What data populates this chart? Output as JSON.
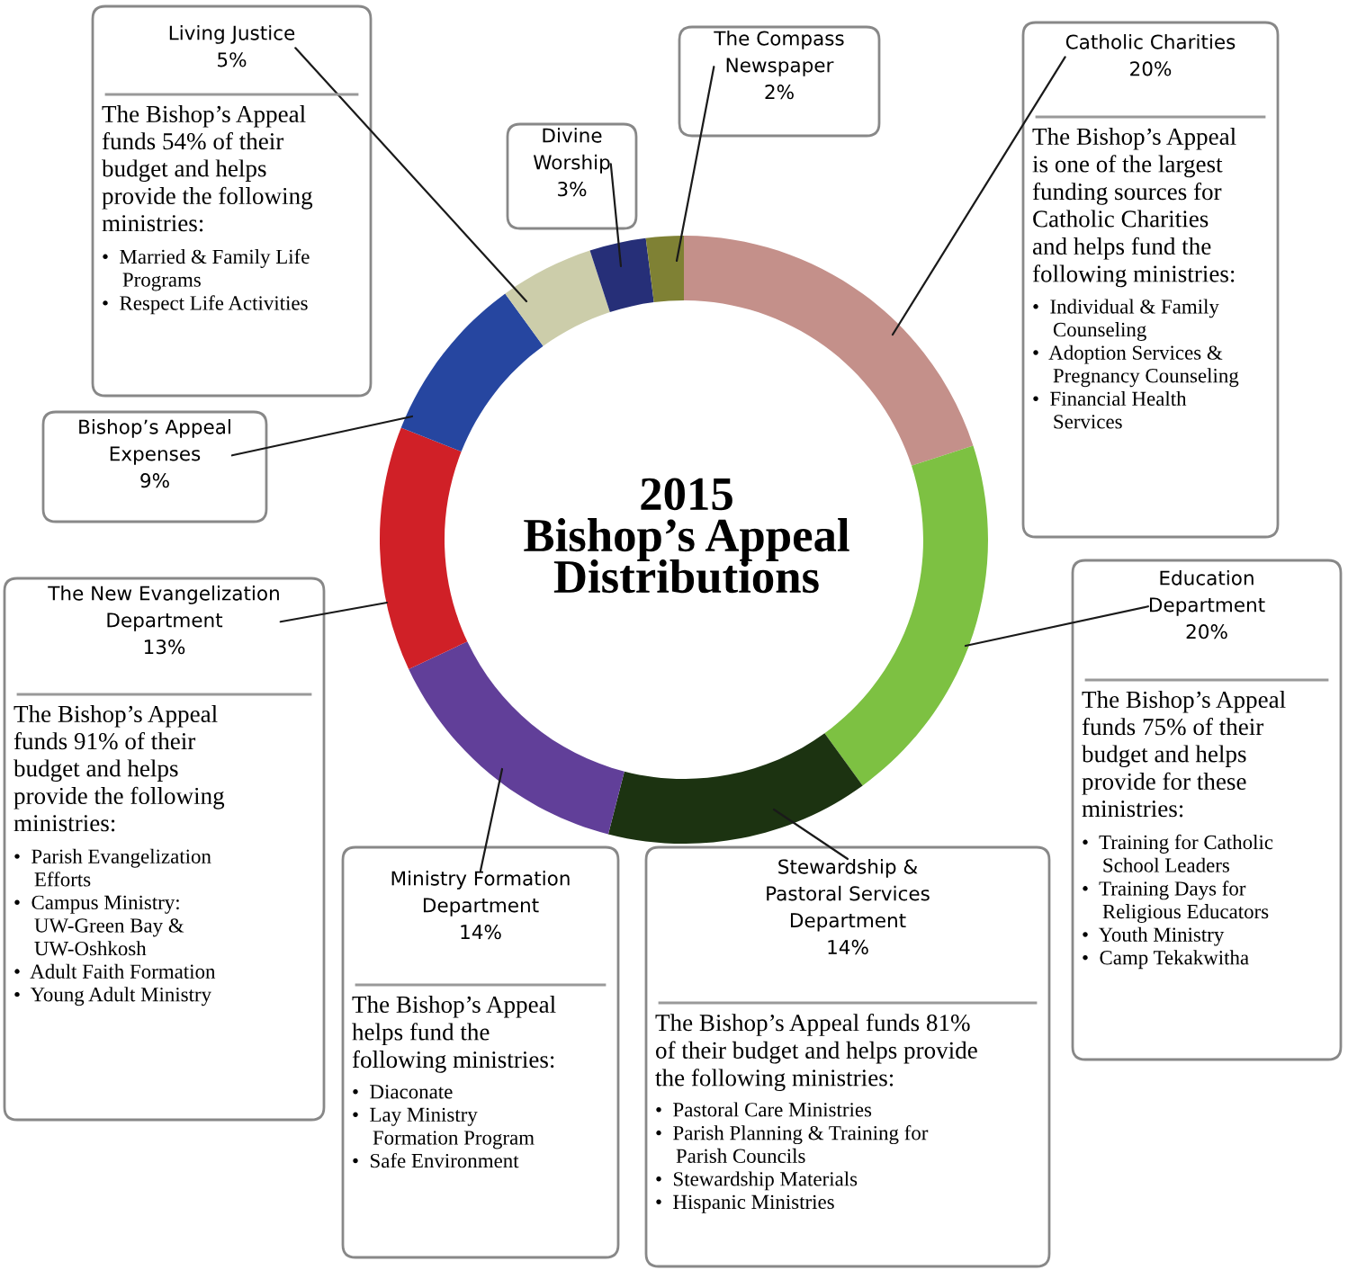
{
  "chart_data": {
    "type": "donut",
    "title": "2015\nBishop’s Appeal\nDistributions",
    "categories": [
      "Catholic Charities",
      "Education\nDepartment",
      "Stewardship &\nPastoral Services\nDepartment",
      "Ministry Formation\nDepartment",
      "The New Evangelization\nDepartment",
      "Bishop’s Appeal\nExpenses",
      "Living Justice",
      "Divine\nWorship",
      "The Compass\nNewspaper"
    ],
    "values": [
      20,
      20,
      14,
      14,
      13,
      9,
      5,
      3,
      2
    ],
    "value_labels": [
      "20%",
      "20%",
      "14%",
      "14%",
      "13%",
      "9%",
      "5%",
      "3%",
      "2%"
    ],
    "colors": [
      "#c4908a",
      "#7dc142",
      "#1c3311",
      "#613f99",
      "#d02027",
      "#2646a0",
      "#cccdaa",
      "#262f78",
      "#7f8134"
    ],
    "annotations": [
      "The Bishop’s Appeal\nis one of the largest\nfunding sources for\nCatholic Charities\nand helps fund the\nfollowing ministries:",
      "•  Individual & Family\n    Counseling\n•  Adoption Services &\n    Pregnancy Counseling\n•  Financial Health\n    Services",
      "The Bishop’s Appeal\nfunds 75% of their\nbudget and helps\nprovide for these\nministries:",
      "•  Training for Catholic\n    School Leaders\n•  Training Days for\n    Religious Educators\n•  Youth Ministry\n•  Camp Tekakwitha",
      "The Bishop’s Appeal funds 81%\nof their budget and helps provide\nthe following ministries:",
      "•  Pastoral Care Ministries\n•  Parish Planning & Training for\n    Parish Councils\n•  Stewardship Materials\n•  Hispanic Ministries",
      "The Bishop’s Appeal\nhelps fund the\nfollowing ministries:",
      "•  Diaconate\n•  Lay Ministry\n    Formation Program\n•  Safe Environment",
      "The Bishop’s Appeal\nfunds 91% of their\nbudget and helps\nprovide the following\nministries:",
      "•  Parish Evangelization\n    Efforts\n•  Campus Ministry:\n    UW-Green Bay &\n    UW-Oshkosh\n•  Adult Faith Formation\n•  Young Adult Ministry",
      "The Bishop’s Appeal\nfunds 54% of their\nbudget and helps\nprovide the following\nministries:",
      "•  Married & Family Life\n    Programs\n•  Respect Life Activities"
    ]
  }
}
